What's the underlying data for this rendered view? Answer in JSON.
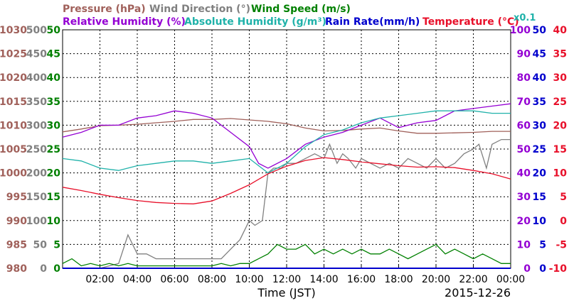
{
  "chart_data": {
    "type": "line",
    "date": "2015-12-26",
    "x_title": "Time (JST)",
    "x_ticks": [
      "02:00",
      "04:00",
      "06:00",
      "08:00",
      "10:00",
      "12:00",
      "14:00",
      "16:00",
      "18:00",
      "20:00",
      "22:00",
      "00:00"
    ],
    "xlim_hours": [
      0,
      24
    ],
    "grid": true,
    "legend": [
      {
        "label": "Pressure (hPa)",
        "color": "#a0605a"
      },
      {
        "label": "Wind Direction (°)",
        "color": "#808080"
      },
      {
        "label": "Wind Speed (m/s)",
        "color": "#008000"
      },
      {
        "label": "Relative Humidity (%)",
        "color": "#9400d3"
      },
      {
        "label": "Absolute Humidity (g/m³)",
        "color": "#20b2aa"
      },
      {
        "label": "Rain Rate(mm/h)",
        "color": "#0000cd"
      },
      {
        "label": "Temperature (°C)",
        "color": "#e8102a"
      }
    ],
    "absolute_humidity_scale_note": "x0.1",
    "axes": {
      "pressure": {
        "ticks": [
          "1030",
          "1025",
          "1020",
          "1015",
          "1010",
          "1005",
          "1000",
          "995",
          "990",
          "985",
          "980"
        ],
        "range": [
          980,
          1030
        ],
        "color": "#a0605a"
      },
      "wind_direction": {
        "ticks": [
          "500",
          "450",
          "400",
          "350",
          "300",
          "250",
          "200",
          "150",
          "100",
          "50",
          "0"
        ],
        "range": [
          0,
          500
        ],
        "color": "#808080"
      },
      "wind_speed": {
        "ticks": [
          "50",
          "45",
          "40",
          "35",
          "30",
          "25",
          "20",
          "15",
          "10",
          "5",
          "0"
        ],
        "range": [
          0,
          50
        ],
        "color": "#008000"
      },
      "relative_humidity": {
        "ticks": [
          "100",
          "90",
          "80",
          "70",
          "60",
          "50",
          "40",
          "30",
          "20",
          "10",
          "0"
        ],
        "range": [
          0,
          100
        ],
        "color": "#9400d3"
      },
      "rain_rate": {
        "ticks": [
          "50",
          "45",
          "40",
          "35",
          "30",
          "25",
          "20",
          "15",
          "10",
          "5",
          "0"
        ],
        "range": [
          0,
          50
        ],
        "color": "#0000cd"
      },
      "temperature": {
        "ticks": [
          "40",
          "35",
          "30",
          "25",
          "20",
          "15",
          "10",
          "5",
          "0",
          "-5",
          "-10"
        ],
        "range": [
          -10,
          40
        ],
        "color": "#e8102a"
      }
    },
    "series": [
      {
        "name": "Pressure (hPa)",
        "axis": "pressure",
        "color": "#a0605a",
        "x": [
          0,
          1,
          2,
          3,
          4,
          5,
          6,
          7,
          8,
          9,
          10,
          11,
          12,
          13,
          14,
          15,
          16,
          17,
          18,
          19,
          20,
          21,
          22,
          23,
          24
        ],
        "y": [
          1008.6,
          1009.2,
          1009.9,
          1010.0,
          1010.2,
          1010.5,
          1010.8,
          1011.2,
          1011.2,
          1011.4,
          1011.1,
          1010.8,
          1010.3,
          1009.4,
          1008.8,
          1008.9,
          1009.2,
          1009.4,
          1008.8,
          1008.3,
          1008.3,
          1008.4,
          1008.5,
          1008.7,
          1008.7
        ]
      },
      {
        "name": "Wind Direction (°)",
        "axis": "wind_direction",
        "color": "#808080",
        "x": [
          0,
          1,
          2,
          3,
          3.5,
          4,
          4.5,
          5,
          5.5,
          6,
          7,
          8,
          8.5,
          9,
          9.5,
          10,
          10.3,
          10.7,
          11,
          11.3,
          11.7,
          12,
          12.5,
          13,
          13.5,
          14,
          14.3,
          14.7,
          15,
          15.3,
          15.7,
          16,
          16.5,
          17,
          17.5,
          18,
          18.5,
          19,
          19.5,
          20,
          20.5,
          21,
          21.5,
          22,
          22.3,
          22.7,
          23,
          23.5,
          24
        ],
        "y": [
          0,
          0,
          0,
          10,
          70,
          30,
          30,
          20,
          20,
          20,
          20,
          20,
          20,
          40,
          60,
          100,
          90,
          100,
          200,
          210,
          210,
          220,
          220,
          230,
          240,
          230,
          260,
          220,
          240,
          230,
          210,
          230,
          220,
          210,
          220,
          210,
          230,
          220,
          210,
          230,
          210,
          220,
          240,
          250,
          260,
          210,
          260,
          270,
          270
        ]
      },
      {
        "name": "Wind Speed (m/s)",
        "axis": "wind_speed",
        "color": "#008000",
        "x": [
          0,
          0.5,
          1,
          1.5,
          2,
          2.5,
          3,
          3.5,
          4,
          4.5,
          5,
          5.5,
          6,
          6.5,
          7,
          7.5,
          8,
          8.5,
          9,
          9.5,
          10,
          10.5,
          11,
          11.5,
          12,
          12.5,
          13,
          13.5,
          14,
          14.5,
          15,
          15.5,
          16,
          16.5,
          17,
          17.5,
          18,
          18.5,
          19,
          19.5,
          20,
          20.5,
          21,
          21.5,
          22,
          22.5,
          23,
          23.5,
          24
        ],
        "y": [
          1,
          2,
          0.5,
          1,
          0.5,
          1,
          0.5,
          1,
          0.5,
          0.5,
          0.5,
          0.5,
          0.5,
          0.5,
          0.5,
          0.5,
          0.5,
          1,
          0.5,
          1,
          1,
          2,
          3,
          5,
          4,
          4,
          5,
          3,
          4,
          3,
          4,
          3,
          4,
          3,
          3,
          4,
          3,
          2,
          3,
          4,
          5,
          3,
          4,
          3,
          2,
          3,
          2,
          1,
          1
        ]
      },
      {
        "name": "Relative Humidity (%)",
        "axis": "relative_humidity",
        "color": "#9400d3",
        "x": [
          0,
          1,
          2,
          3,
          4,
          5,
          6,
          7,
          8,
          9,
          10,
          10.5,
          11,
          12,
          13,
          14,
          15,
          16,
          17,
          18,
          19,
          20,
          21,
          22,
          23,
          24
        ],
        "y": [
          55,
          57,
          60,
          60,
          63,
          64,
          66,
          65,
          63,
          57,
          51,
          44,
          42,
          46,
          52,
          55,
          57,
          60,
          63,
          59,
          61,
          62,
          66,
          67,
          68,
          69
        ]
      },
      {
        "name": "Absolute Humidity (g/m³)",
        "axis": "relative_humidity",
        "color": "#20b2aa",
        "x": [
          0,
          1,
          2,
          3,
          4,
          5,
          6,
          7,
          8,
          9,
          10,
          10.5,
          11,
          12,
          13,
          14,
          15,
          16,
          17,
          18,
          19,
          20,
          21,
          22,
          23,
          24
        ],
        "y": [
          46,
          45,
          42,
          41,
          43,
          44,
          45,
          45,
          44,
          45,
          46,
          43,
          40,
          44,
          51,
          56,
          58,
          61,
          63,
          64,
          65,
          66,
          66,
          66,
          65,
          65
        ]
      },
      {
        "name": "Rain Rate(mm/h)",
        "axis": "rain_rate",
        "color": "#0000cd",
        "x": [
          0,
          24
        ],
        "y": [
          0,
          0
        ]
      },
      {
        "name": "Temperature (°C)",
        "axis": "temperature",
        "color": "#e8102a",
        "x": [
          0,
          1,
          2,
          3,
          4,
          5,
          6,
          7,
          8,
          9,
          10,
          11,
          12,
          13,
          14,
          15,
          16,
          17,
          18,
          19,
          20,
          21,
          22,
          23,
          24
        ],
        "y": [
          7.0,
          6.3,
          5.5,
          4.8,
          4.2,
          3.8,
          3.6,
          3.5,
          4.1,
          5.7,
          7.5,
          9.8,
          11.4,
          12.6,
          13.2,
          12.8,
          12.3,
          11.9,
          11.5,
          11.2,
          11.3,
          11.1,
          10.5,
          9.8,
          8.7
        ]
      }
    ]
  }
}
